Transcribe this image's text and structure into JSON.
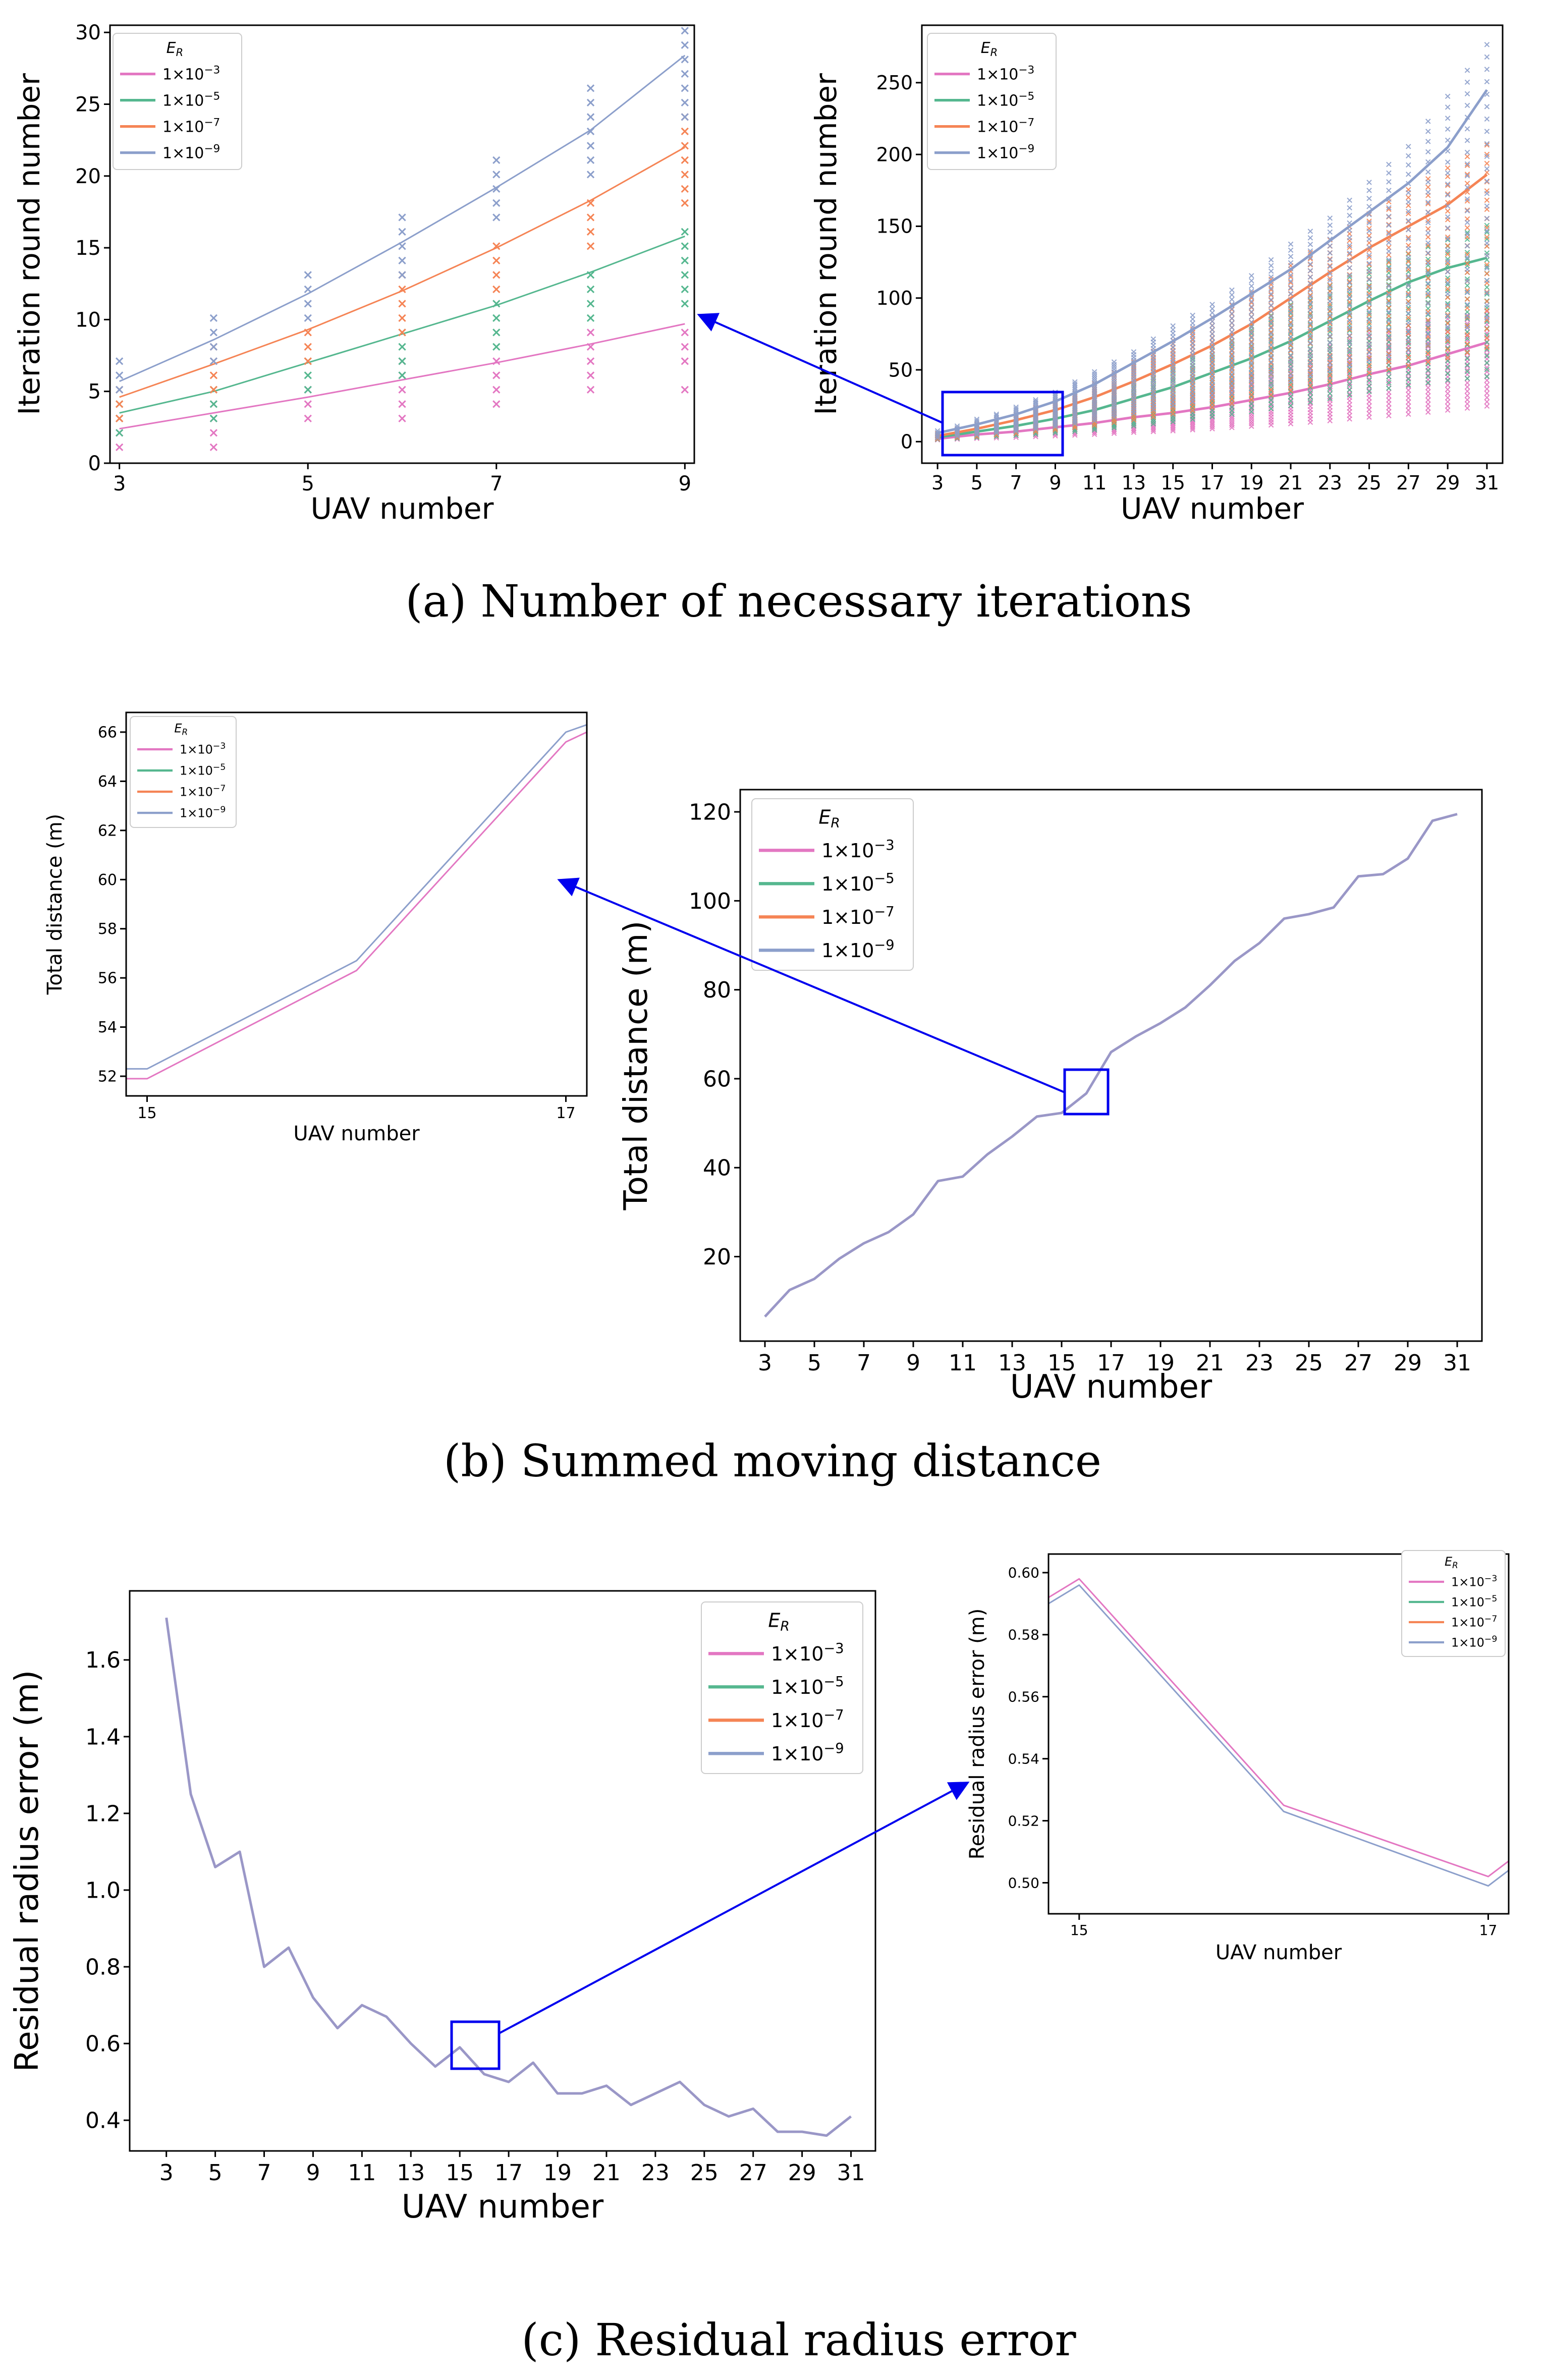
{
  "colors": {
    "s1": "#e377c2",
    "s2": "#55b78f",
    "s3": "#f58455",
    "s4": "#8c9fcb",
    "overlap": "#9a97c7",
    "highlight": "#0000ee"
  },
  "legend": {
    "title": "E",
    "title_sub": "R",
    "entries": [
      {
        "base": "1×10",
        "exp": "−3"
      },
      {
        "base": "1×10",
        "exp": "−5"
      },
      {
        "base": "1×10",
        "exp": "−7"
      },
      {
        "base": "1×10",
        "exp": "−9"
      }
    ]
  },
  "captions": {
    "a": "(a)  Number of necessary iterations",
    "b": "(b)  Summed moving distance",
    "c": "(c)  Residual radius error"
  },
  "chart_data": [
    {
      "id": "a_zoom",
      "type": "scatter",
      "title": "",
      "xlabel": "UAV number",
      "ylabel": "Iteration round number",
      "xlim": [
        2.9,
        9.1
      ],
      "ylim": [
        0,
        30.5
      ],
      "xticks": [
        3,
        5,
        7,
        9
      ],
      "yticks": [
        0,
        5,
        10,
        15,
        20,
        25,
        30
      ],
      "series": [
        {
          "name": "1×10⁻³",
          "x": [
            3,
            4,
            5,
            6,
            7,
            8,
            9
          ],
          "trend": [
            2.4,
            3.5,
            4.6,
            5.8,
            7.0,
            8.3,
            9.7
          ],
          "points": {
            "3": [
              1,
              2,
              3
            ],
            "4": [
              1,
              2,
              3,
              4
            ],
            "5": [
              3,
              4,
              5
            ],
            "6": [
              3,
              4,
              5,
              6,
              7
            ],
            "7": [
              4,
              5,
              6,
              7
            ],
            "8": [
              5,
              6,
              7,
              8,
              9
            ],
            "9": [
              5,
              7,
              8,
              9
            ]
          }
        },
        {
          "name": "1×10⁻⁵",
          "x": [
            3,
            4,
            5,
            6,
            7,
            8,
            9
          ],
          "trend": [
            3.5,
            5.0,
            7.0,
            9.0,
            11.0,
            13.3,
            15.8
          ],
          "points": {
            "3": [
              2,
              3,
              4
            ],
            "4": [
              3,
              4,
              5
            ],
            "5": [
              5,
              6,
              7
            ],
            "6": [
              6,
              7,
              8,
              9
            ],
            "7": [
              8,
              9,
              10,
              11
            ],
            "8": [
              10,
              11,
              12,
              13
            ],
            "9": [
              11,
              12,
              13,
              14,
              15,
              16
            ]
          }
        },
        {
          "name": "1×10⁻⁷",
          "x": [
            3,
            4,
            5,
            6,
            7,
            8,
            9
          ],
          "trend": [
            4.6,
            6.9,
            9.3,
            12.0,
            15.0,
            18.3,
            22.0
          ],
          "points": {
            "3": [
              3,
              4,
              5
            ],
            "4": [
              5,
              6,
              7,
              8
            ],
            "5": [
              7,
              8,
              9
            ],
            "6": [
              9,
              10,
              11,
              12,
              13
            ],
            "7": [
              12,
              13,
              14,
              15
            ],
            "8": [
              15,
              16,
              17,
              18
            ],
            "9": [
              18,
              19,
              20,
              21,
              22,
              23,
              24
            ]
          }
        },
        {
          "name": "1×10⁻⁹",
          "x": [
            3,
            4,
            5,
            6,
            7,
            8,
            9
          ],
          "trend": [
            5.7,
            8.6,
            11.8,
            15.4,
            19.2,
            23.2,
            28.4
          ],
          "points": {
            "3": [
              5,
              6,
              7
            ],
            "4": [
              7,
              8,
              9,
              10
            ],
            "5": [
              10,
              11,
              12,
              13
            ],
            "6": [
              13,
              14,
              15,
              16,
              17
            ],
            "7": [
              17,
              18,
              19,
              20,
              21
            ],
            "8": [
              20,
              21,
              22,
              23,
              24,
              25,
              26
            ],
            "9": [
              24,
              25,
              26,
              27,
              28,
              29,
              30
            ]
          }
        }
      ]
    },
    {
      "id": "a_full",
      "type": "scatter",
      "title": "",
      "xlabel": "UAV number",
      "ylabel": "Iteration round number",
      "xlim": [
        2.2,
        31.8
      ],
      "ylim": [
        -15,
        290
      ],
      "xticks": [
        3,
        5,
        7,
        9,
        11,
        13,
        15,
        17,
        19,
        21,
        23,
        25,
        27,
        29,
        31
      ],
      "yticks": [
        0,
        50,
        100,
        150,
        200,
        250
      ],
      "series": [
        {
          "name": "1×10⁻³",
          "x": [
            3,
            5,
            7,
            9,
            11,
            13,
            15,
            17,
            19,
            21,
            23,
            25,
            27,
            29,
            31
          ],
          "trend": [
            2,
            5,
            7,
            10,
            13,
            17,
            20,
            24,
            29,
            34,
            40,
            47,
            53,
            61,
            69
          ],
          "max": [
            3,
            6,
            9,
            13,
            18,
            24,
            30,
            38,
            47,
            57,
            66,
            75,
            80,
            85,
            90
          ]
        },
        {
          "name": "1×10⁻⁵",
          "x": [
            3,
            5,
            7,
            9,
            11,
            13,
            15,
            17,
            19,
            21,
            23,
            25,
            27,
            29,
            31
          ],
          "trend": [
            3,
            7,
            11,
            16,
            22,
            30,
            38,
            48,
            58,
            70,
            84,
            98,
            111,
            121,
            128
          ],
          "max": [
            4,
            9,
            14,
            21,
            30,
            40,
            52,
            65,
            80,
            95,
            108,
            120,
            130,
            140,
            150
          ]
        },
        {
          "name": "1×10⁻⁷",
          "x": [
            3,
            5,
            7,
            9,
            11,
            13,
            15,
            17,
            19,
            21,
            23,
            25,
            27,
            29,
            31
          ],
          "trend": [
            4,
            9,
            15,
            22,
            31,
            42,
            54,
            67,
            82,
            100,
            118,
            135,
            150,
            165,
            186
          ],
          "max": [
            6,
            12,
            19,
            28,
            40,
            55,
            70,
            86,
            103,
            122,
            140,
            158,
            175,
            190,
            206
          ]
        },
        {
          "name": "1×10⁻⁹",
          "x": [
            3,
            5,
            7,
            9,
            11,
            13,
            15,
            17,
            19,
            21,
            23,
            25,
            27,
            29,
            31
          ],
          "trend": [
            6,
            12,
            19,
            28,
            40,
            55,
            70,
            86,
            103,
            120,
            140,
            160,
            180,
            205,
            245
          ],
          "max": [
            8,
            15,
            24,
            34,
            48,
            62,
            80,
            95,
            115,
            137,
            155,
            180,
            205,
            240,
            276
          ]
        }
      ]
    },
    {
      "id": "b_zoom",
      "type": "line",
      "title": "",
      "xlabel": "UAV number",
      "ylabel": "Total distance (m)",
      "xlim": [
        14.9,
        17.1
      ],
      "ylim": [
        51.2,
        66.8
      ],
      "xticks": [
        15,
        17
      ],
      "yticks": [
        52,
        54,
        56,
        58,
        60,
        62,
        64,
        66
      ],
      "series": [
        {
          "name": "1×10⁻³",
          "x": [
            14.9,
            15,
            16,
            17,
            17.1
          ],
          "y": [
            51.9,
            51.9,
            56.3,
            65.6,
            66.0
          ]
        },
        {
          "name": "1×10⁻⁹",
          "x": [
            14.9,
            15,
            16,
            17,
            17.1
          ],
          "y": [
            52.3,
            52.3,
            56.7,
            66.0,
            66.3
          ]
        }
      ]
    },
    {
      "id": "b_full",
      "type": "line",
      "title": "",
      "xlabel": "UAV number",
      "ylabel": "Total distance (m)",
      "xlim": [
        2.0,
        32.0
      ],
      "ylim": [
        1,
        125
      ],
      "xticks": [
        3,
        5,
        7,
        9,
        11,
        13,
        15,
        17,
        19,
        21,
        23,
        25,
        27,
        29,
        31
      ],
      "yticks": [
        20,
        40,
        60,
        80,
        100,
        120
      ],
      "series": [
        {
          "name": "1×10⁻⁹",
          "x": [
            3,
            4,
            5,
            6,
            7,
            8,
            9,
            10,
            11,
            12,
            13,
            14,
            15,
            16,
            17,
            18,
            19,
            20,
            21,
            22,
            23,
            24,
            25,
            26,
            27,
            28,
            29,
            30,
            31
          ],
          "y": [
            6.5,
            12.5,
            15,
            19.5,
            23,
            25.5,
            29.5,
            37,
            38,
            43,
            47,
            51.5,
            52.3,
            56.7,
            66,
            69.5,
            72.5,
            76,
            81,
            86.5,
            90.5,
            96,
            97,
            98.5,
            105.5,
            106,
            109.5,
            118,
            119.5
          ]
        }
      ]
    },
    {
      "id": "c_full",
      "type": "line",
      "title": "",
      "xlabel": "UAV number",
      "ylabel": "Residual radius error (m)",
      "xlim": [
        1.5,
        32.0
      ],
      "ylim": [
        0.32,
        1.78
      ],
      "xticks": [
        3,
        5,
        7,
        9,
        11,
        13,
        15,
        17,
        19,
        21,
        23,
        25,
        27,
        29,
        31
      ],
      "yticks": [
        0.4,
        0.6,
        0.8,
        1.0,
        1.2,
        1.4,
        1.6
      ],
      "series": [
        {
          "name": "1×10⁻⁹",
          "x": [
            3,
            4,
            5,
            6,
            7,
            8,
            9,
            10,
            11,
            12,
            13,
            14,
            15,
            16,
            17,
            18,
            19,
            20,
            21,
            22,
            23,
            24,
            25,
            26,
            27,
            28,
            29,
            30,
            31
          ],
          "y": [
            1.71,
            1.25,
            1.06,
            1.1,
            0.8,
            0.85,
            0.72,
            0.64,
            0.7,
            0.67,
            0.6,
            0.54,
            0.59,
            0.52,
            0.5,
            0.55,
            0.47,
            0.47,
            0.49,
            0.44,
            0.47,
            0.5,
            0.44,
            0.41,
            0.43,
            0.37,
            0.37,
            0.36,
            0.41
          ]
        }
      ]
    },
    {
      "id": "c_zoom",
      "type": "line",
      "title": "",
      "xlabel": "UAV number",
      "ylabel": "Residual radius error (m)",
      "xlim": [
        14.85,
        17.1
      ],
      "ylim": [
        0.49,
        0.606
      ],
      "xticks": [
        15,
        17
      ],
      "yticks": [
        0.5,
        0.52,
        0.54,
        0.56,
        0.58,
        0.6
      ],
      "series": [
        {
          "name": "1×10⁻³",
          "x": [
            14.85,
            15,
            16,
            17,
            17.1
          ],
          "y": [
            0.592,
            0.598,
            0.525,
            0.502,
            0.507
          ]
        },
        {
          "name": "1×10⁻⁹",
          "x": [
            14.85,
            15,
            16,
            17,
            17.1
          ],
          "y": [
            0.59,
            0.596,
            0.523,
            0.499,
            0.504
          ]
        }
      ]
    }
  ]
}
